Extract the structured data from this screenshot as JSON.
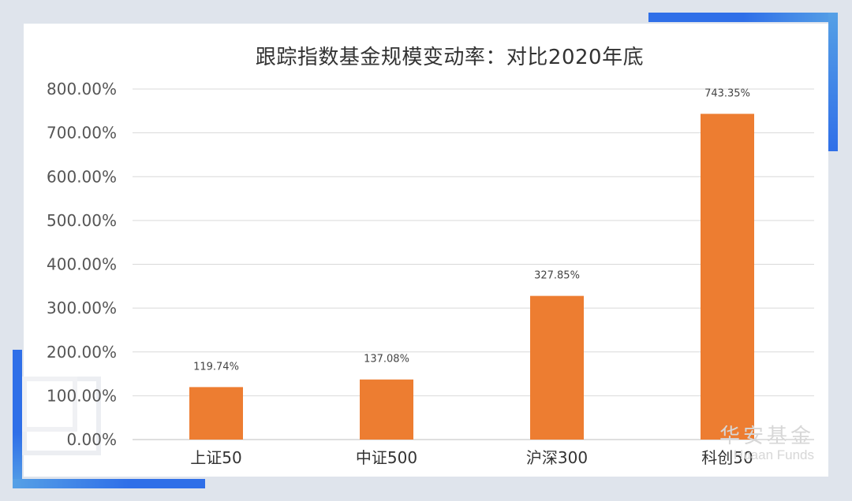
{
  "chart_data": {
    "type": "bar",
    "title": "跟踪指数基金规模变动率：对比2020年底",
    "categories": [
      "上证50",
      "中证500",
      "沪深300",
      "科创50"
    ],
    "values": [
      119.74,
      137.08,
      327.85,
      743.35
    ],
    "value_labels": [
      "119.74%",
      "137.08%",
      "327.85%",
      "743.35%"
    ],
    "ylim": [
      0,
      800
    ],
    "yticks": [
      0,
      100,
      200,
      300,
      400,
      500,
      600,
      700,
      800
    ],
    "ytick_labels": [
      "0.00%",
      "100.00%",
      "200.00%",
      "300.00%",
      "400.00%",
      "500.00%",
      "600.00%",
      "700.00%",
      "800.00%"
    ],
    "xlabel": "",
    "ylabel": "",
    "grid": true,
    "legend": "none",
    "bar_color": "#ed7d31"
  },
  "watermark": {
    "cn": "华安基金",
    "en": "Huaan Funds"
  },
  "colors": {
    "background": "#dfe4ec",
    "accent_blue": "#2f6fe8",
    "accent_light_blue": "#56a0e6"
  }
}
